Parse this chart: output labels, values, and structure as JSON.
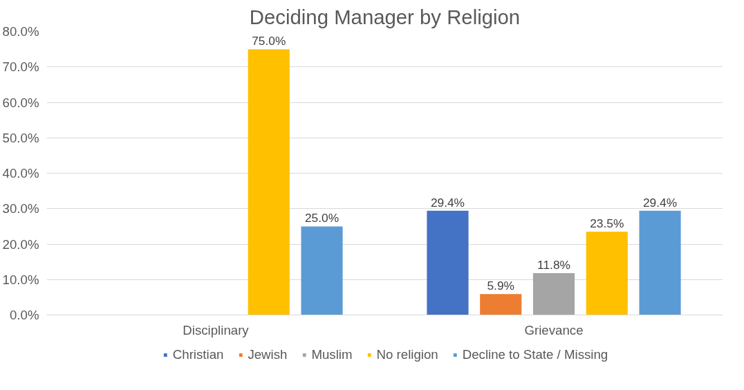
{
  "chart_data": {
    "type": "bar",
    "title": "Deciding Manager by Religion",
    "categories": [
      "Disciplinary",
      "Grievance"
    ],
    "series": [
      {
        "name": "Christian",
        "color": "#4472c4",
        "values": [
          null,
          29.4
        ],
        "value_labels": [
          null,
          "29.4%"
        ]
      },
      {
        "name": "Jewish",
        "color": "#ed7d31",
        "values": [
          null,
          5.9
        ],
        "value_labels": [
          null,
          "5.9%"
        ]
      },
      {
        "name": "Muslim",
        "color": "#a5a5a5",
        "values": [
          null,
          11.8
        ],
        "value_labels": [
          null,
          "11.8%"
        ]
      },
      {
        "name": "No religion",
        "color": "#ffc000",
        "values": [
          75.0,
          23.5
        ],
        "value_labels": [
          "75.0%",
          "23.5%"
        ]
      },
      {
        "name": "Decline to State / Missing",
        "color": "#5b9bd5",
        "values": [
          25.0,
          29.4
        ],
        "value_labels": [
          "25.0%",
          "29.4%"
        ]
      }
    ],
    "ylim": [
      0,
      80
    ],
    "yticks": [
      {
        "value": 0,
        "label": "0.0%"
      },
      {
        "value": 10,
        "label": "10.0%"
      },
      {
        "value": 20,
        "label": "20.0%"
      },
      {
        "value": 30,
        "label": "30.0%"
      },
      {
        "value": 40,
        "label": "40.0%"
      },
      {
        "value": 50,
        "label": "50.0%"
      },
      {
        "value": 60,
        "label": "60.0%"
      },
      {
        "value": 70,
        "label": "70.0%"
      },
      {
        "value": 80,
        "label": "80.0%"
      }
    ],
    "grid": "y",
    "legend": "bottom"
  }
}
